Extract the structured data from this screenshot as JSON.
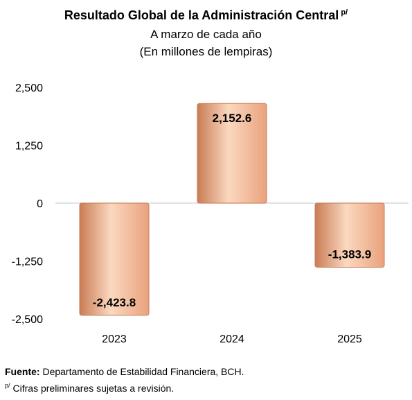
{
  "title": "Resultado Global de la Administración Central",
  "title_superscript": "p/",
  "subtitle_1": "A marzo de cada año",
  "subtitle_2": "(En millones de lempiras)",
  "colors": {
    "bar_light": "#fbd8c0",
    "bar_mid": "#e9a27c",
    "bar_dark": "#c97c55",
    "zero_line": "#d9d9d9"
  },
  "chart_data": {
    "type": "bar",
    "categories": [
      "2023",
      "2024",
      "2025"
    ],
    "values": [
      -2423.8,
      2152.6,
      -1383.9
    ],
    "data_labels": [
      "-2,423.8",
      "2,152.6",
      "-1,383.9"
    ],
    "y_ticks": [
      2500,
      1250,
      0,
      -1250,
      -2500
    ],
    "y_tick_labels": [
      "2,500",
      "1,250",
      "0",
      "-1,250",
      "-2,500"
    ],
    "ylim": [
      -2500,
      2500
    ],
    "grid": false,
    "legend": "none"
  },
  "footer": {
    "source_label": "Fuente:",
    "source_text": " Departamento de Estabilidad Financiera, BCH.",
    "note_mark": "p/",
    "note_text": "Cifras preliminares sujetas a revisión."
  }
}
